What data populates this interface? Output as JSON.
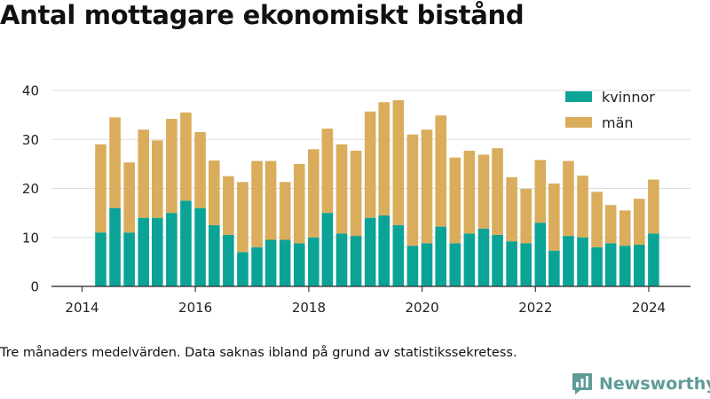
{
  "title": "Antal mottagare ekonomiskt bistånd",
  "note": "Tre månaders medelvärden. Data saknas ibland på grund av statistikssekretess.",
  "brand": {
    "name": "Newsworthy",
    "color": "#5f9b99",
    "icon": "newsworthy-logo-icon"
  },
  "colors": {
    "kvinnor": "#0aa396",
    "man": "#d9ad5b",
    "grid": "#dddddd",
    "axis": "#444444"
  },
  "chart_data": {
    "type": "bar",
    "stacked": true,
    "ylim": [
      0,
      40
    ],
    "yticks": [
      0,
      10,
      20,
      30,
      40
    ],
    "xticks": [
      "2014",
      "2016",
      "2018",
      "2020",
      "2022",
      "2024"
    ],
    "grid": true,
    "legend_position": "top-right",
    "x": [
      "2014-05",
      "2014-08",
      "2014-11",
      "2015-02",
      "2015-05",
      "2015-08",
      "2015-11",
      "2016-02",
      "2016-05",
      "2016-08",
      "2016-11",
      "2017-02",
      "2017-05",
      "2017-08",
      "2017-11",
      "2018-02",
      "2018-05",
      "2018-08",
      "2018-11",
      "2019-02",
      "2019-05",
      "2019-08",
      "2019-11",
      "2020-02",
      "2020-05",
      "2020-08",
      "2020-11",
      "2021-02",
      "2021-05",
      "2021-08",
      "2021-11",
      "2022-02",
      "2022-05",
      "2022-08",
      "2022-11",
      "2023-02",
      "2023-05",
      "2023-08",
      "2023-11",
      "2024-02"
    ],
    "series": [
      {
        "name": "kvinnor",
        "color": "#0aa396",
        "values": [
          11,
          16,
          11,
          14,
          14,
          15,
          17.5,
          16,
          12.5,
          10.5,
          7,
          8,
          9.5,
          9.5,
          8.8,
          10,
          15,
          10.8,
          10.3,
          14,
          14.5,
          12.5,
          8.3,
          8.8,
          12.2,
          8.8,
          10.8,
          11.8,
          10.5,
          9.2,
          8.8,
          13,
          7.3,
          10.3,
          10,
          8,
          8.8,
          8.3,
          8.5,
          10.8
        ]
      },
      {
        "name": "män",
        "color": "#d9ad5b",
        "values": [
          18,
          18.5,
          14.3,
          18,
          15.8,
          19.2,
          18,
          15.5,
          13.2,
          12,
          14.3,
          17.6,
          16.1,
          11.8,
          16.2,
          18,
          17.2,
          18.2,
          17.4,
          21.7,
          23.1,
          25.5,
          22.7,
          23.2,
          22.7,
          17.5,
          16.9,
          15.1,
          17.7,
          13.1,
          11.1,
          12.8,
          13.7,
          15.3,
          12.6,
          11.3,
          7.8,
          7.2,
          9.4,
          11
        ]
      }
    ]
  }
}
